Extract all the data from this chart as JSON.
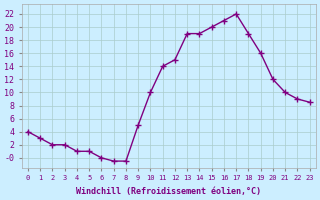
{
  "x": [
    0,
    1,
    2,
    3,
    4,
    5,
    6,
    7,
    8,
    9,
    10,
    11,
    12,
    13,
    14,
    15,
    16,
    17,
    18,
    19,
    20,
    21,
    22,
    23
  ],
  "y": [
    4,
    3,
    2,
    2,
    1,
    1,
    0,
    -0.5,
    -0.5,
    5,
    10,
    14,
    15,
    19,
    19,
    20,
    21,
    22,
    19,
    16,
    12,
    10,
    9,
    8.5
  ],
  "line_color": "#800080",
  "marker_color": "#800080",
  "bg_color": "#cceeff",
  "grid_color": "#aacccc",
  "yticks": [
    0,
    2,
    4,
    6,
    8,
    10,
    12,
    14,
    16,
    18,
    20,
    22
  ],
  "ytick_labels": [
    "-0",
    "2",
    "4",
    "6",
    "8",
    "10",
    "12",
    "14",
    "16",
    "18",
    "20",
    "22"
  ],
  "xlabel": "Windchill (Refroidissement éolien,°C)",
  "xlabel_color": "#800080",
  "tick_color": "#800080",
  "ylim": [
    -1.5,
    23.5
  ],
  "xlim": [
    -0.5,
    23.5
  ]
}
